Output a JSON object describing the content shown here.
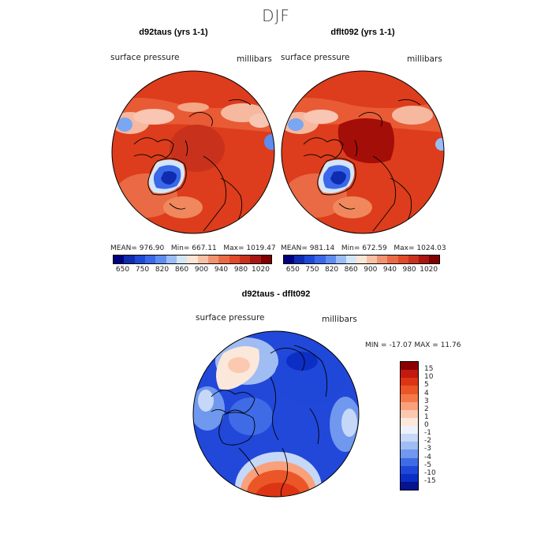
{
  "season": "DJF",
  "panels": [
    {
      "title": "d92taus (yrs 1-1)",
      "variable": "surface pressure",
      "units": "millibars",
      "stats": {
        "mean_label": "MEAN=",
        "mean": "976.90",
        "min_label": "Min=",
        "min": "667.11",
        "max_label": "Max=",
        "max": "1019.47"
      },
      "colorbar": {
        "colors": [
          "#00007f",
          "#0f2bb0",
          "#1e48d6",
          "#3a68e8",
          "#5f8cf0",
          "#9bbdf6",
          "#d3e6f8",
          "#fbe5d5",
          "#f8c0a5",
          "#f09370",
          "#ea6a45",
          "#e04a28",
          "#c8321c",
          "#a81512",
          "#7f0000"
        ],
        "ticks": [
          "650",
          "750",
          "820",
          "860",
          "900",
          "940",
          "980",
          "1020"
        ]
      }
    },
    {
      "title": "dflt092 (yrs 1-1)",
      "variable": "surface pressure",
      "units": "millibars",
      "stats": {
        "mean_label": "MEAN=",
        "mean": "981.14",
        "min_label": "Min=",
        "min": "672.59",
        "max_label": "Max=",
        "max": "1024.03"
      },
      "colorbar": {
        "colors": [
          "#00007f",
          "#0f2bb0",
          "#1e48d6",
          "#3a68e8",
          "#5f8cf0",
          "#9bbdf6",
          "#d3e6f8",
          "#fbe5d5",
          "#f8c0a5",
          "#f09370",
          "#ea6a45",
          "#e04a28",
          "#c8321c",
          "#a81512",
          "#7f0000"
        ],
        "ticks": [
          "650",
          "750",
          "820",
          "860",
          "900",
          "940",
          "980",
          "1020"
        ]
      }
    }
  ],
  "difference": {
    "title": "d92taus - dflt092",
    "variable": "surface pressure",
    "units": "millibars",
    "minmax": {
      "min_label": "MIN =",
      "min": "-17.07",
      "max_label": "MAX =",
      "max": "11.76"
    },
    "colorbar": {
      "colors": [
        "#8b0000",
        "#c21a0e",
        "#dd3416",
        "#eb5626",
        "#f4794a",
        "#f8a17c",
        "#fac9b0",
        "#fbe8da",
        "#eef0fb",
        "#c6d8f7",
        "#9fbcf3",
        "#7098ee",
        "#3f6be6",
        "#1f48d8",
        "#0c2ec4",
        "#05148f"
      ],
      "labels": [
        "15",
        "10",
        "5",
        "4",
        "3",
        "2",
        "1",
        "0",
        "-1",
        "-2",
        "-3",
        "-4",
        "-5",
        "-10",
        "-15"
      ]
    }
  },
  "colors": {
    "ocean_red": "#dd3d1c",
    "deep_red": "#a30e08",
    "ice_blue": "#1c3ed8",
    "diff_blue": "#2148d9"
  }
}
